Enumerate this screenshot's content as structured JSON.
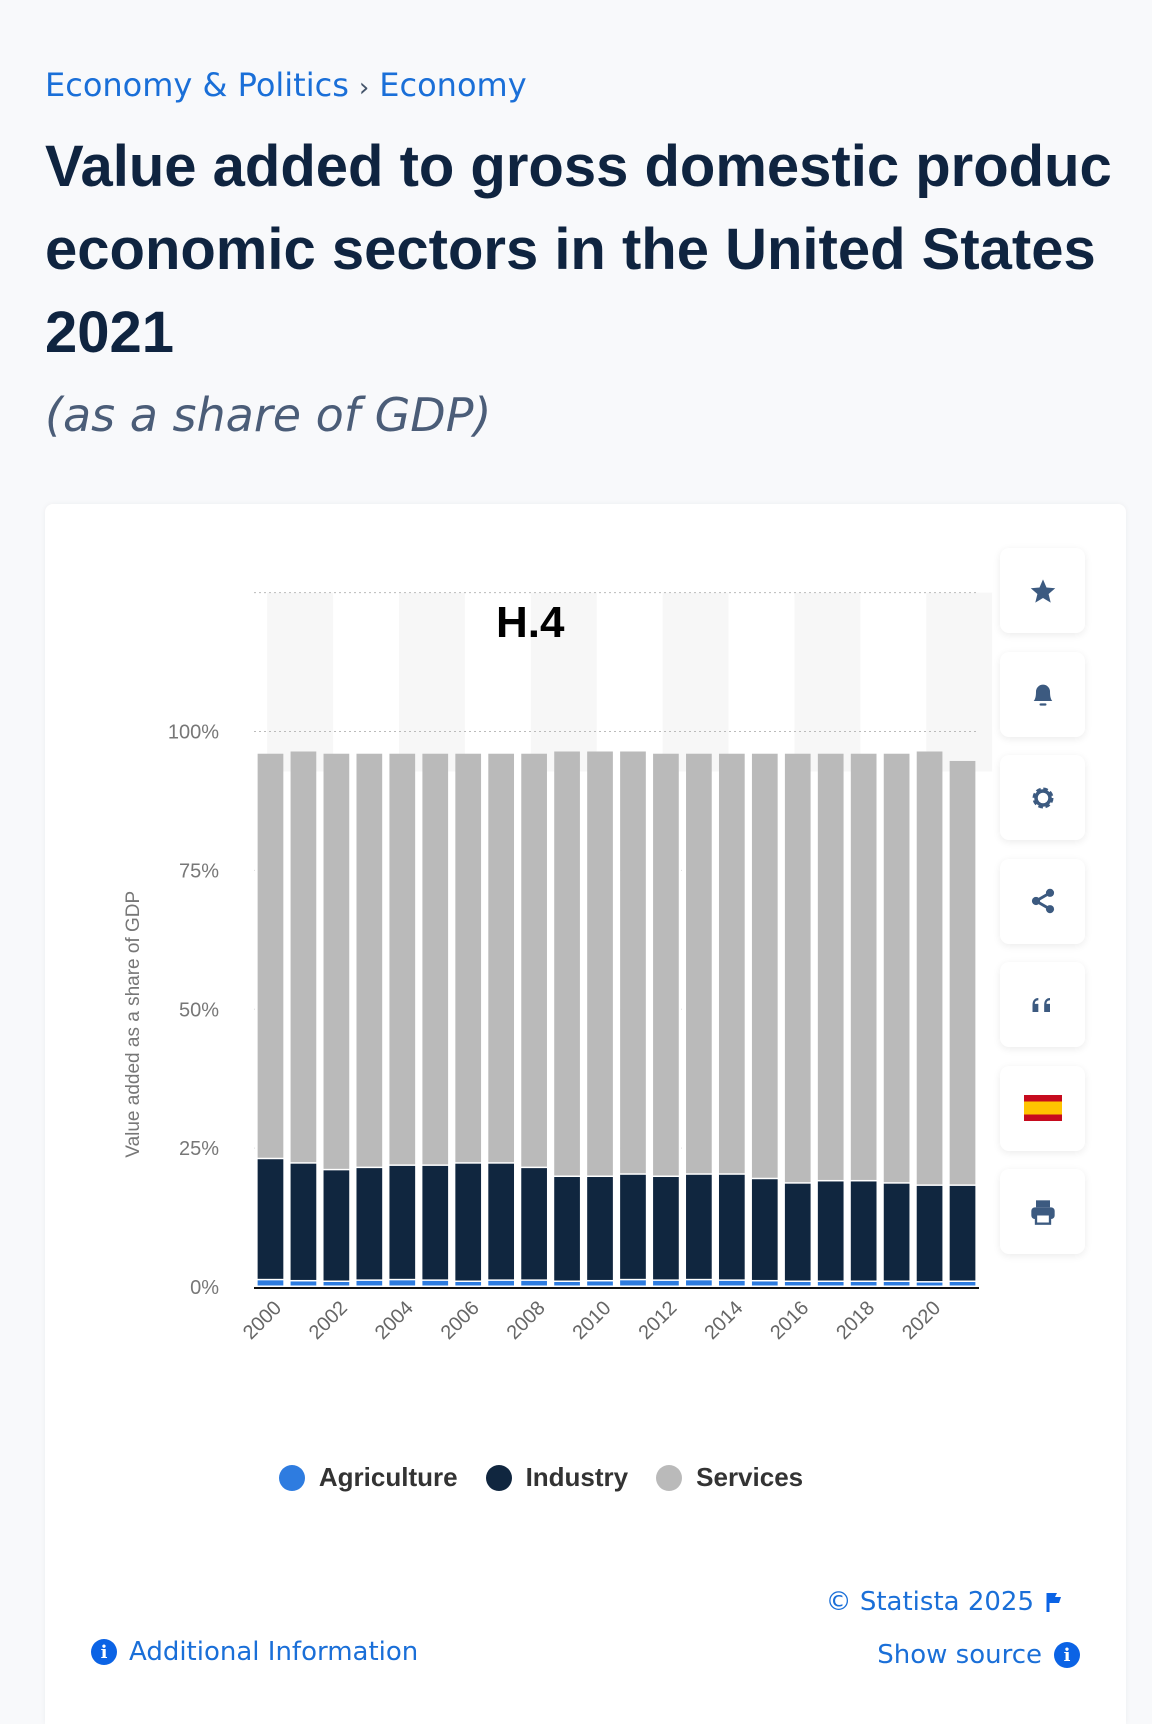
{
  "breadcrumb": {
    "items": [
      "Economy & Politics",
      "Economy"
    ],
    "separator": "›"
  },
  "title_lines": [
    "Value added to gross domestic produc",
    "economic sectors in the United States",
    "2021"
  ],
  "subtitle": "(as a share of GDP)",
  "overlay_label": "H.4",
  "tools": [
    {
      "icon": "star-icon"
    },
    {
      "icon": "bell-icon"
    },
    {
      "icon": "gear-icon"
    },
    {
      "icon": "share-icon"
    },
    {
      "icon": "quote-icon"
    },
    {
      "icon": "spain-flag-icon"
    },
    {
      "icon": "print-icon"
    }
  ],
  "footer": {
    "copyright": "© Statista 2025",
    "show_source": "Show source",
    "additional_info": "Additional Information"
  },
  "colors": {
    "agriculture": "#2e7ce0",
    "industry": "#10263f",
    "services": "#bababa",
    "link": "#1a6fd8"
  },
  "chart_data": {
    "type": "bar",
    "stacked": true,
    "ylabel": "Value added as a share of GDP",
    "ylim": [
      0,
      125
    ],
    "yticks": [
      "0%",
      "25%",
      "50%",
      "75%",
      "100%"
    ],
    "ytick_values": [
      0,
      25,
      50,
      75,
      100
    ],
    "grid": true,
    "legend_placement": "bottom",
    "categories": [
      "2000",
      "2001",
      "2002",
      "2003",
      "2004",
      "2005",
      "2006",
      "2007",
      "2008",
      "2009",
      "2010",
      "2011",
      "2012",
      "2013",
      "2014",
      "2015",
      "2016",
      "2017",
      "2018",
      "2019",
      "2020",
      "2021"
    ],
    "xtick_labels": [
      "2000",
      "2002",
      "2004",
      "2006",
      "2008",
      "2010",
      "2012",
      "2014",
      "2016",
      "2018",
      "2020"
    ],
    "series": [
      {
        "name": "Agriculture",
        "values": [
          1.2,
          1.0,
          0.9,
          1.1,
          1.2,
          1.1,
          0.9,
          1.1,
          1.1,
          0.9,
          1.0,
          1.2,
          1.1,
          1.2,
          1.1,
          1.0,
          0.9,
          0.9,
          0.9,
          0.9,
          0.8,
          0.9
        ]
      },
      {
        "name": "Industry",
        "values": [
          21.8,
          21.2,
          20.1,
          20.3,
          20.6,
          20.7,
          21.3,
          21.1,
          20.3,
          18.9,
          18.8,
          19.0,
          18.7,
          19.0,
          19.1,
          18.4,
          17.7,
          18.1,
          18.1,
          17.7,
          17.4,
          17.3
        ]
      },
      {
        "name": "Services",
        "values": [
          73.0,
          74.2,
          75.0,
          74.6,
          74.2,
          74.2,
          73.8,
          73.8,
          74.6,
          76.6,
          76.6,
          76.2,
          76.2,
          75.8,
          75.8,
          76.6,
          77.4,
          77.0,
          77.0,
          77.4,
          78.2,
          76.5
        ]
      }
    ]
  }
}
